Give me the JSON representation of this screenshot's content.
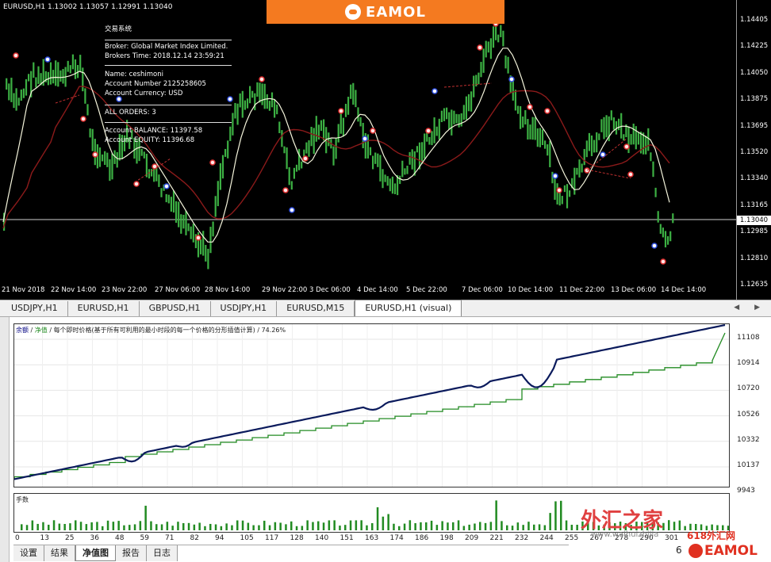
{
  "window": {
    "symbol_info": "EURUSD,H1  1.13002 1.13057 1.12991 1.13040"
  },
  "banner": {
    "text": "EAMOL"
  },
  "info_panel": {
    "title": "交易系统",
    "broker": "Broker:          Global Market Index Limited.",
    "broker_time": "Brokers Time:  2018.12.14 23:59:21",
    "name": "Name:              ceshimoni",
    "account_number": "Account Number     2125258605",
    "account_currency": "Account Currency:   USD",
    "all_orders": "ALL ORDERS:              3",
    "balance": "Account BALANCE:     11397.58",
    "equity": "Account EQUITY:      11396.68"
  },
  "price_axis": [
    "1.14405",
    "1.14225",
    "1.14050",
    "1.13875",
    "1.13695",
    "1.13520",
    "1.13340",
    "1.13165",
    "1.12985",
    "1.12810",
    "1.12635"
  ],
  "current_price": "1.13040",
  "time_axis": [
    "21 Nov 2018",
    "22 Nov 14:00",
    "23 Nov 22:00",
    "27 Nov 06:00",
    "28 Nov 14:00",
    "29 Nov 22:00",
    "3 Dec 06:00",
    "4 Dec 14:00",
    "5 Dec 22:00",
    "7 Dec 06:00",
    "10 Dec 14:00",
    "11 Dec 22:00",
    "13 Dec 06:00",
    "14 Dec 14:00"
  ],
  "chart_tabs": [
    "USDJPY,H1",
    "EURUSD,H1",
    "GBPUSD,H1",
    "USDJPY,H1",
    "EURUSD,M15",
    "EURUSD,H1 (visual)"
  ],
  "active_chart_tab": "EURUSD,H1 (visual)",
  "tab_scroll": "◀ ▶",
  "tester": {
    "legend_balance": "余额",
    "legend_equity": "净值",
    "legend_model": "每个即时价格(基于所有可利用的最小时段的每一个价格的分形插值计算)",
    "legend_quality": "74.26%",
    "lot_title": "手数",
    "y_labels": [
      "11108",
      "10914",
      "10720",
      "10526",
      "10332",
      "10137",
      "9943"
    ],
    "x_labels": [
      "0",
      "13",
      "25",
      "36",
      "48",
      "59",
      "71",
      "82",
      "94",
      "105",
      "117",
      "128",
      "140",
      "151",
      "163",
      "174",
      "186",
      "198",
      "209",
      "221",
      "232",
      "244",
      "255",
      "267",
      "278",
      "290",
      "301"
    ],
    "bottom_tabs": [
      "设置",
      "结果",
      "净值图",
      "报告",
      "日志"
    ],
    "active_bottom_tab": "净值图"
  },
  "watermark": {
    "site_name": "外汇之家",
    "site_url": "www.waihuizhijia",
    "brand_small": "618外汇网",
    "brand_logo": "EAMOL",
    "edge_digit": "6"
  },
  "colors": {
    "candle": "#3cb043",
    "ma_fast": "#f5f5dc",
    "ma_slow": "#8b1a1a",
    "balance_line": "#228b22",
    "equity_line": "#0a1a5c",
    "banner": "#f47a20"
  }
}
